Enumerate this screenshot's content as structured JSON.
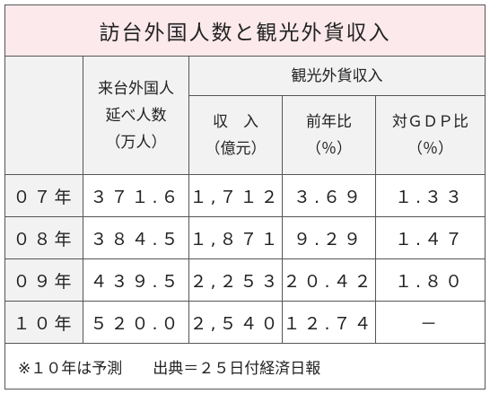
{
  "title": "訪台外国人数と観光外貨収入",
  "header": {
    "visitors": [
      "来台外国人",
      "延べ人数",
      "（万人）"
    ],
    "income_group": "観光外貨収入",
    "columns": [
      [
        "収　入",
        "（億元）"
      ],
      [
        "前年比",
        "（％）"
      ],
      [
        "対ＧＤＰ比",
        "（％）"
      ]
    ]
  },
  "rows": [
    [
      "０７年",
      "３７１.６",
      "１,７１２",
      "３.６９",
      "１.３３"
    ],
    [
      "０８年",
      "３８４.５",
      "１,８７１",
      "９.２９",
      "１.４７"
    ],
    [
      "０９年",
      "４３９.５",
      "２,２５３",
      "２０.４２",
      "１.８０"
    ],
    [
      "１０年",
      "５２０.０",
      "２,５４０",
      "１２.７４",
      "－"
    ]
  ],
  "footnote": "※１０年は予測　　出典＝２５日付経済日報"
}
